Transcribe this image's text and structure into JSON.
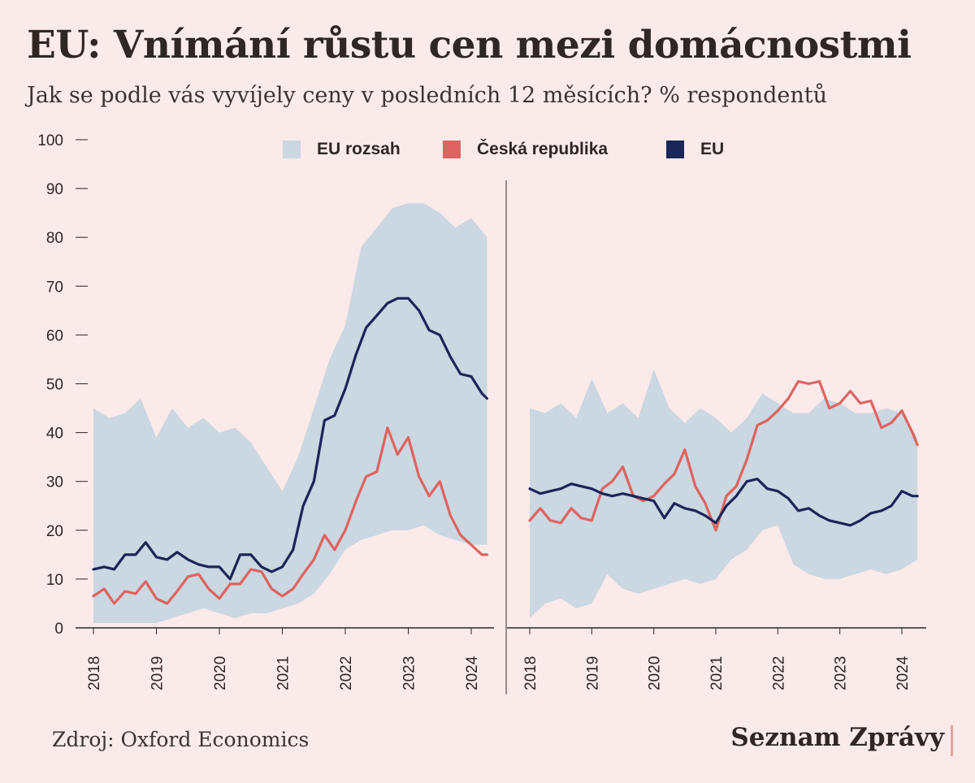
{
  "header": {
    "title": "EU: Vnímání růstu cen mezi domácnostmi",
    "subtitle": "Jak se podle vás vyvíjely ceny v posledních 12 měsících? % respondentů"
  },
  "footer": {
    "source": "Zdroj: Oxford Economics",
    "brand": "Seznam Zprávy"
  },
  "colors": {
    "background": "#fbeaea",
    "range": "#cbd7e1",
    "cz": "#dd6461",
    "eu": "#1a2657",
    "axis": "#2e2724"
  },
  "chart_data": [
    {
      "type": "line",
      "ylim": [
        0,
        100
      ],
      "yticks": [
        "0",
        "10",
        "20",
        "30",
        "40",
        "50",
        "60",
        "70",
        "80",
        "90",
        "100"
      ],
      "xlim": [
        2017.92,
        2024.33
      ],
      "xticks": [
        "2018",
        "2019",
        "2020",
        "2021",
        "2022",
        "2023",
        "2024"
      ],
      "legend": [
        {
          "label": "EU rozsah",
          "type": "area"
        },
        {
          "label": "Česká republika",
          "type": "line"
        },
        {
          "label": "EU",
          "type": "line"
        }
      ],
      "legend_position": "top-center",
      "range": {
        "name": "EU rozsah",
        "x": [
          2018.0,
          2018.25,
          2018.5,
          2018.75,
          2019.0,
          2019.25,
          2019.5,
          2019.75,
          2020.0,
          2020.25,
          2020.5,
          2020.75,
          2021.0,
          2021.25,
          2021.5,
          2021.75,
          2022.0,
          2022.25,
          2022.5,
          2022.75,
          2023.0,
          2023.25,
          2023.5,
          2023.75,
          2024.0,
          2024.25
        ],
        "upper": [
          45,
          43,
          44,
          47,
          39,
          45,
          41,
          43,
          40,
          41,
          38,
          33,
          28,
          35,
          45,
          55,
          62,
          78,
          82,
          86,
          87,
          87,
          85,
          82,
          84,
          80
        ],
        "lower": [
          1,
          1,
          1,
          1,
          1,
          2,
          3,
          4,
          3,
          2,
          3,
          3,
          4,
          5,
          7,
          11,
          16,
          18,
          19,
          20,
          20,
          21,
          19,
          18,
          17,
          17
        ]
      },
      "series": [
        {
          "name": "Česká republika",
          "x": [
            2018.0,
            2018.17,
            2018.33,
            2018.5,
            2018.67,
            2018.83,
            2019.0,
            2019.17,
            2019.33,
            2019.5,
            2019.67,
            2019.83,
            2020.0,
            2020.17,
            2020.33,
            2020.5,
            2020.67,
            2020.83,
            2021.0,
            2021.17,
            2021.33,
            2021.5,
            2021.67,
            2021.83,
            2022.0,
            2022.17,
            2022.33,
            2022.5,
            2022.67,
            2022.83,
            2023.0,
            2023.17,
            2023.33,
            2023.5,
            2023.67,
            2023.83,
            2024.0,
            2024.17,
            2024.25
          ],
          "values": [
            6.5,
            8,
            5,
            7.5,
            7,
            9.5,
            6,
            5,
            7.5,
            10.5,
            11,
            8,
            6,
            9,
            9,
            12,
            11.5,
            8,
            6.5,
            8,
            11,
            14,
            19,
            16,
            20,
            26,
            31,
            32,
            41,
            35.5,
            39,
            31,
            27,
            30,
            23,
            19,
            17,
            15,
            15
          ]
        },
        {
          "name": "EU",
          "x": [
            2018.0,
            2018.17,
            2018.33,
            2018.5,
            2018.67,
            2018.83,
            2019.0,
            2019.17,
            2019.33,
            2019.5,
            2019.67,
            2019.83,
            2020.0,
            2020.17,
            2020.33,
            2020.5,
            2020.67,
            2020.83,
            2021.0,
            2021.17,
            2021.33,
            2021.5,
            2021.67,
            2021.83,
            2022.0,
            2022.17,
            2022.33,
            2022.5,
            2022.67,
            2022.83,
            2023.0,
            2023.17,
            2023.33,
            2023.5,
            2023.67,
            2023.83,
            2024.0,
            2024.17,
            2024.25
          ],
          "values": [
            12,
            12.5,
            12,
            15,
            15,
            17.5,
            14.5,
            14,
            15.5,
            14,
            13,
            12.5,
            12.5,
            10,
            15,
            15,
            12.5,
            11.5,
            12.5,
            16,
            25,
            30,
            42.5,
            43.5,
            49,
            56,
            61.5,
            64,
            66.5,
            67.5,
            67.5,
            65,
            61,
            60,
            55.5,
            52,
            51.5,
            48,
            47
          ]
        }
      ]
    },
    {
      "type": "line",
      "ylim": [
        0,
        100
      ],
      "xlim": [
        2017.92,
        2024.33
      ],
      "xticks": [
        "2018",
        "2019",
        "2020",
        "2021",
        "2022",
        "2023",
        "2024"
      ],
      "range": {
        "name": "EU rozsah",
        "x": [
          2018.0,
          2018.25,
          2018.5,
          2018.75,
          2019.0,
          2019.25,
          2019.5,
          2019.75,
          2020.0,
          2020.25,
          2020.5,
          2020.75,
          2021.0,
          2021.25,
          2021.5,
          2021.75,
          2022.0,
          2022.25,
          2022.5,
          2022.75,
          2023.0,
          2023.25,
          2023.5,
          2023.75,
          2024.0,
          2024.25
        ],
        "upper": [
          45,
          44,
          46,
          43,
          51,
          44,
          46,
          43,
          53,
          45,
          42,
          45,
          43,
          40,
          43,
          48,
          46,
          44,
          44,
          47,
          46,
          44,
          44,
          45,
          44,
          39
        ],
        "lower": [
          2,
          5,
          6,
          4,
          5,
          11,
          8,
          7,
          8,
          9,
          10,
          9,
          10,
          14,
          16,
          20,
          21,
          13,
          11,
          10,
          10,
          11,
          12,
          11,
          12,
          14
        ]
      },
      "series": [
        {
          "name": "Česká republika",
          "x": [
            2018.0,
            2018.17,
            2018.33,
            2018.5,
            2018.67,
            2018.83,
            2019.0,
            2019.17,
            2019.33,
            2019.5,
            2019.67,
            2019.83,
            2020.0,
            2020.17,
            2020.33,
            2020.5,
            2020.67,
            2020.83,
            2021.0,
            2021.17,
            2021.33,
            2021.5,
            2021.67,
            2021.83,
            2022.0,
            2022.17,
            2022.33,
            2022.5,
            2022.67,
            2022.83,
            2023.0,
            2023.17,
            2023.33,
            2023.5,
            2023.67,
            2023.83,
            2024.0,
            2024.17,
            2024.25
          ],
          "values": [
            22,
            24.5,
            22,
            21.5,
            24.5,
            22.5,
            22,
            28.5,
            30,
            33,
            27,
            26,
            27,
            29.5,
            31.5,
            36.5,
            29,
            25.5,
            20,
            27,
            29,
            34.5,
            41.5,
            42.5,
            44.5,
            47,
            50.5,
            50,
            50.5,
            45,
            46,
            48.5,
            46,
            46.5,
            41,
            42,
            44.5,
            40,
            37.5
          ]
        },
        {
          "name": "EU",
          "x": [
            2018.0,
            2018.17,
            2018.33,
            2018.5,
            2018.67,
            2018.83,
            2019.0,
            2019.17,
            2019.33,
            2019.5,
            2019.67,
            2019.83,
            2020.0,
            2020.17,
            2020.33,
            2020.5,
            2020.67,
            2020.83,
            2021.0,
            2021.17,
            2021.33,
            2021.5,
            2021.67,
            2021.83,
            2022.0,
            2022.17,
            2022.33,
            2022.5,
            2022.67,
            2022.83,
            2023.0,
            2023.17,
            2023.33,
            2023.5,
            2023.67,
            2023.83,
            2024.0,
            2024.17,
            2024.25
          ],
          "values": [
            28.5,
            27.5,
            28,
            28.5,
            29.5,
            29,
            28.5,
            27.5,
            27,
            27.5,
            27,
            26.5,
            26,
            22.5,
            25.5,
            24.5,
            24,
            23,
            21.5,
            25,
            27,
            30,
            30.5,
            28.5,
            28,
            26.5,
            24,
            24.5,
            23,
            22,
            21.5,
            21,
            22,
            23.5,
            24,
            25,
            28,
            27,
            27
          ]
        }
      ]
    }
  ]
}
